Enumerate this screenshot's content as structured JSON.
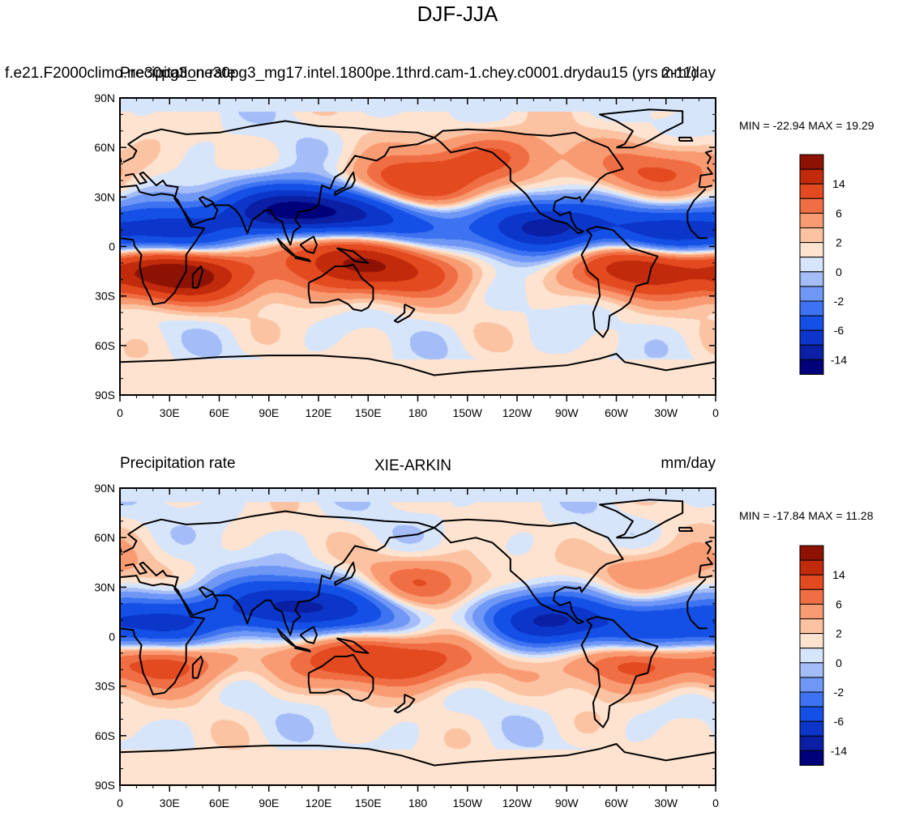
{
  "title": "DJF-JJA",
  "colors": {
    "levels": [
      -18,
      -14,
      -10,
      -6,
      -4,
      -2,
      -1,
      0,
      1,
      2,
      4,
      6,
      10,
      14,
      18
    ],
    "fill": [
      "#00007a",
      "#0a1fa3",
      "#0b36c9",
      "#1450e6",
      "#3d73f0",
      "#6f97f5",
      "#a4bdf8",
      "#d7e5fb",
      "#fde3d0",
      "#fcc3a3",
      "#f99b72",
      "#f06e44",
      "#e34a1f",
      "#c22a0c",
      "#8e1204"
    ]
  },
  "axes": {
    "lat_labels": [
      "90N",
      "60N",
      "30N",
      "0",
      "30S",
      "60S",
      "90S"
    ],
    "lon_labels": [
      "0",
      "30E",
      "60E",
      "90E",
      "120E",
      "150E",
      "180",
      "150W",
      "120W",
      "90W",
      "60W",
      "30W",
      "0"
    ]
  },
  "legend": {
    "labels": [
      "14",
      "6",
      "2",
      "0",
      "-2",
      "-6",
      "-14"
    ]
  },
  "panels": [
    {
      "left_title": "f.e21.F2000climo.ne30pg3_ne30pg3_mg17.intel.1800pe.1thrd.cam-1.chey.c0001.drydau15 (yrs 2-11)",
      "overlap_left": "Precipitation rate",
      "center_title": "",
      "right_title": "mm/day",
      "min_max": "MIN = -22.94 MAX =  19.29"
    },
    {
      "left_title": "Precipitation rate",
      "overlap_left": "",
      "center_title": "XIE-ARKIN",
      "right_title": "mm/day",
      "min_max": "MIN = -17.84 MAX =  11.28"
    }
  ],
  "chart_data": [
    {
      "type": "heatmap",
      "title": "DJF-JJA",
      "subtitle": "f.e21.F2000climo.ne30pg3_ne30pg3_mg17.intel.1800pe.1thrd.cam-1.chey.c0001.drydau15 (yrs 2-11)",
      "variable": "Precipitation rate",
      "units": "mm/day",
      "min": -22.94,
      "max": 19.29,
      "lon_range": [
        0,
        360
      ],
      "lat_range": [
        -90,
        90
      ],
      "contour_levels": [
        -18,
        -14,
        -10,
        -6,
        -4,
        -2,
        -1,
        0,
        1,
        2,
        4,
        6,
        10,
        14,
        18
      ],
      "features": [
        {
          "lon": 30,
          "lat": 8,
          "value": -12
        },
        {
          "lon": 100,
          "lat": 22,
          "value": -16
        },
        {
          "lon": 130,
          "lat": 20,
          "value": -10
        },
        {
          "lon": 160,
          "lat": 12,
          "value": -8
        },
        {
          "lon": 255,
          "lat": 12,
          "value": -16
        },
        {
          "lon": 330,
          "lat": 8,
          "value": -12
        },
        {
          "lon": 25,
          "lat": -15,
          "value": 12
        },
        {
          "lon": 45,
          "lat": -18,
          "value": 8
        },
        {
          "lon": 125,
          "lat": 4,
          "value": 8
        },
        {
          "lon": 140,
          "lat": -12,
          "value": 10
        },
        {
          "lon": 175,
          "lat": -15,
          "value": 6
        },
        {
          "lon": 175,
          "lat": 38,
          "value": 10
        },
        {
          "lon": 315,
          "lat": -12,
          "value": 14
        },
        {
          "lon": 325,
          "lat": 45,
          "value": 6
        },
        {
          "lon": 230,
          "lat": 55,
          "value": 6
        }
      ]
    },
    {
      "type": "heatmap",
      "title": "DJF-JJA",
      "subtitle": "XIE-ARKIN",
      "variable": "Precipitation rate",
      "units": "mm/day",
      "min": -17.84,
      "max": 11.28,
      "lon_range": [
        0,
        360
      ],
      "lat_range": [
        -90,
        90
      ],
      "contour_levels": [
        -18,
        -14,
        -10,
        -6,
        -4,
        -2,
        -1,
        0,
        1,
        2,
        4,
        6,
        10,
        14,
        18
      ],
      "features": [
        {
          "lon": 30,
          "lat": 8,
          "value": -10
        },
        {
          "lon": 95,
          "lat": 20,
          "value": -12
        },
        {
          "lon": 140,
          "lat": 15,
          "value": -8
        },
        {
          "lon": 260,
          "lat": 10,
          "value": -14
        },
        {
          "lon": 330,
          "lat": 5,
          "value": -10
        },
        {
          "lon": 28,
          "lat": -15,
          "value": 8
        },
        {
          "lon": 140,
          "lat": -12,
          "value": 8
        },
        {
          "lon": 185,
          "lat": -15,
          "value": 6
        },
        {
          "lon": 185,
          "lat": 32,
          "value": 6
        },
        {
          "lon": 310,
          "lat": -15,
          "value": 8
        },
        {
          "lon": 330,
          "lat": 40,
          "value": 4
        }
      ]
    }
  ]
}
